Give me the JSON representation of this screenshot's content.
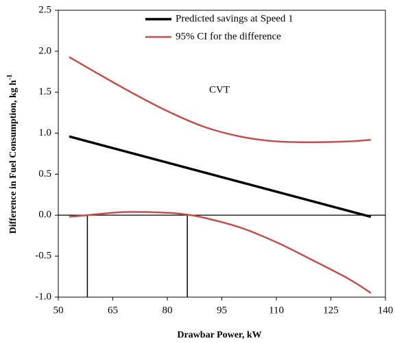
{
  "chart_data": {
    "type": "line",
    "xlabel": "Drawbar Power, kW",
    "ylabel": "Difference in Fuel Consumption, kg h",
    "ylabel_sup": "-1",
    "annotation": "CVT",
    "xlim": [
      50,
      140
    ],
    "xticks": [
      50,
      65,
      80,
      95,
      110,
      125,
      140
    ],
    "ylim": [
      -1.0,
      2.5
    ],
    "yticks": [
      {
        "value": -1.0,
        "label": "-1.0"
      },
      -0.5,
      {
        "value": 0.0,
        "label": "0.0"
      },
      0.5,
      {
        "value": 1.0,
        "label": "1.0"
      },
      1.5,
      {
        "value": 2.0,
        "label": "2.0"
      },
      2.5
    ],
    "reference_x": [
      58,
      85.5
    ],
    "series": [
      {
        "name": "Predicted savings at Speed 1",
        "color": "#000000",
        "x": [
          53,
          136
        ],
        "values": [
          0.96,
          -0.02
        ]
      },
      {
        "name": "95% CI for the difference",
        "color": "#c0504d",
        "x": [
          53,
          60,
          70,
          80,
          90,
          100,
          110,
          120,
          130,
          136
        ],
        "values": [
          1.93,
          1.75,
          1.5,
          1.27,
          1.08,
          0.96,
          0.9,
          0.89,
          0.9,
          0.92
        ]
      },
      {
        "color": "#c0504d",
        "x": [
          53,
          58,
          65,
          70,
          80,
          85,
          90,
          100,
          110,
          120,
          130,
          136
        ],
        "values": [
          -0.02,
          0.0,
          0.03,
          0.04,
          0.03,
          0.01,
          -0.03,
          -0.15,
          -0.33,
          -0.55,
          -0.78,
          -0.95
        ]
      }
    ]
  }
}
